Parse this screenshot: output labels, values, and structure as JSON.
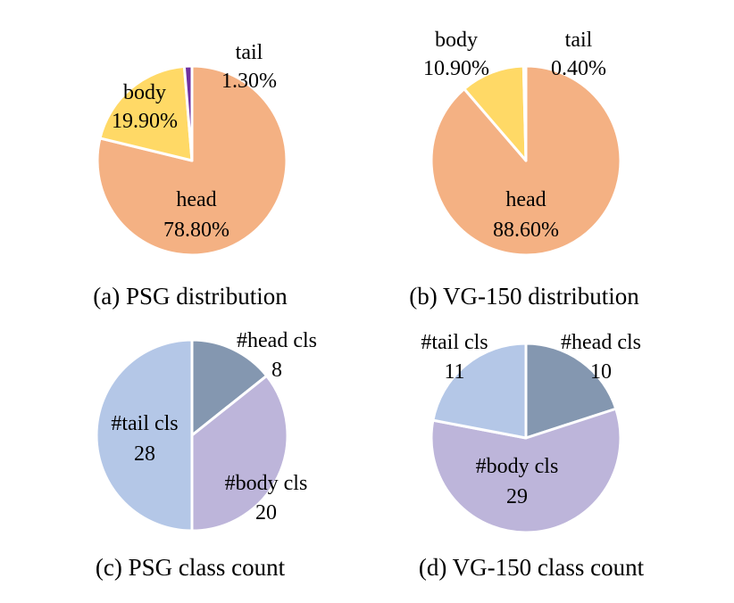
{
  "chart_data": [
    {
      "type": "pie",
      "caption": "(a) PSG distribution",
      "value_format": "percent",
      "slices": [
        {
          "name": "head",
          "value": 78.8,
          "label": "78.80%",
          "color": "#F4B183"
        },
        {
          "name": "body",
          "value": 19.9,
          "label": "19.90%",
          "color": "#FFD966"
        },
        {
          "name": "tail",
          "value": 1.3,
          "label": "1.30%",
          "color": "#7030A0"
        }
      ]
    },
    {
      "type": "pie",
      "caption": "(b) VG-150 distribution",
      "value_format": "percent",
      "slices": [
        {
          "name": "head",
          "value": 88.6,
          "label": "88.60%",
          "color": "#F4B183"
        },
        {
          "name": "body",
          "value": 10.9,
          "label": "10.90%",
          "color": "#FFD966"
        },
        {
          "name": "tail",
          "value": 0.4,
          "label": "0.40%",
          "color": "#7030A0"
        }
      ]
    },
    {
      "type": "pie",
      "caption": "(c) PSG class count",
      "value_format": "count",
      "slices": [
        {
          "name": "#head cls",
          "value": 8,
          "label": "8",
          "color": "#8497B0"
        },
        {
          "name": "#body cls",
          "value": 20,
          "label": "20",
          "color": "#BDB5DA"
        },
        {
          "name": "#tail cls",
          "value": 28,
          "label": "28",
          "color": "#B4C7E7"
        }
      ]
    },
    {
      "type": "pie",
      "caption": "(d) VG-150 class count",
      "value_format": "count",
      "slices": [
        {
          "name": "#head cls",
          "value": 10,
          "label": "10",
          "color": "#8497B0"
        },
        {
          "name": "#body cls",
          "value": 29,
          "label": "29",
          "color": "#BDB5DA"
        },
        {
          "name": "#tail cls",
          "value": 11,
          "label": "11",
          "color": "#B4C7E7"
        }
      ]
    }
  ]
}
